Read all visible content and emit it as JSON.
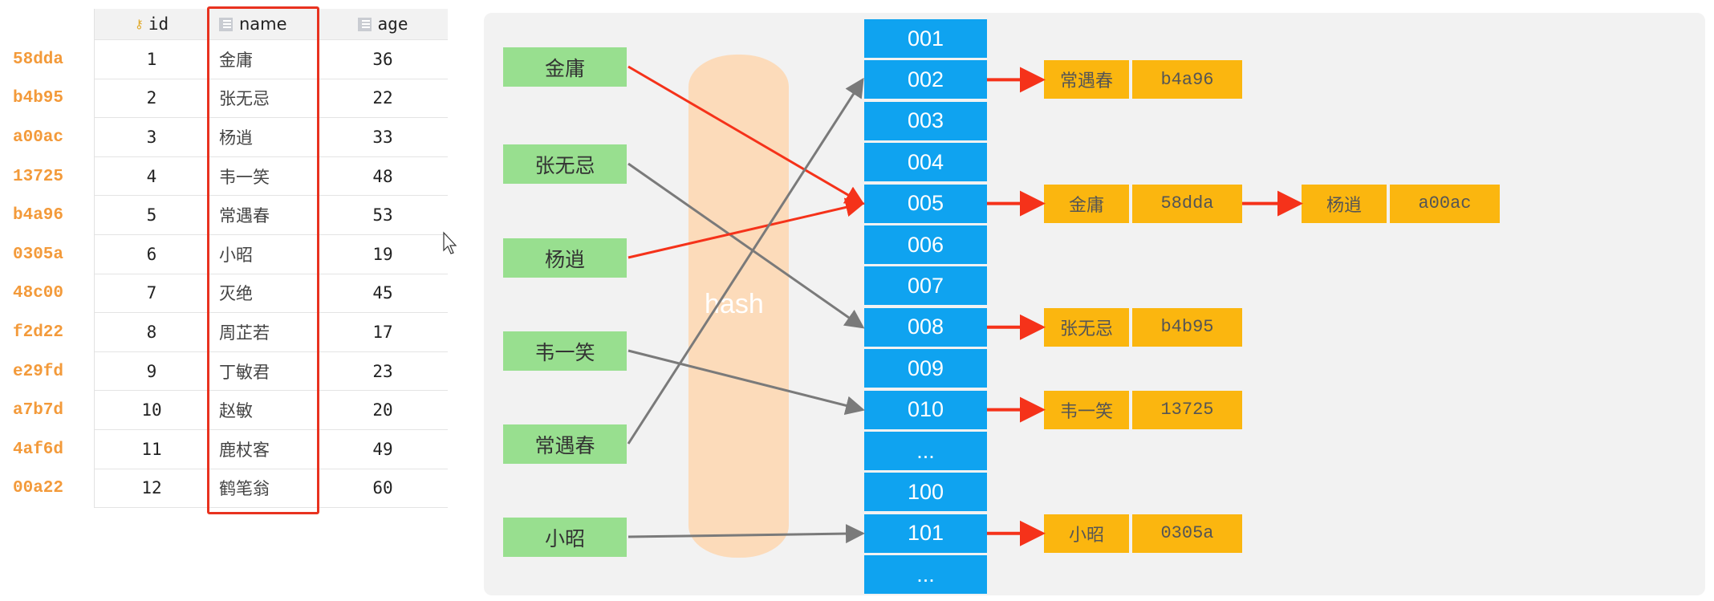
{
  "table": {
    "columns": [
      {
        "label": "id",
        "icon": "primary-key-icon"
      },
      {
        "label": "name",
        "icon": "column-icon"
      },
      {
        "label": "age",
        "icon": "column-icon"
      }
    ],
    "rows": [
      {
        "hash": "58dda",
        "id": "1",
        "name": "金庸",
        "age": "36"
      },
      {
        "hash": "b4b95",
        "id": "2",
        "name": "张无忌",
        "age": "22"
      },
      {
        "hash": "a00ac",
        "id": "3",
        "name": "杨逍",
        "age": "33"
      },
      {
        "hash": "13725",
        "id": "4",
        "name": "韦一笑",
        "age": "48"
      },
      {
        "hash": "b4a96",
        "id": "5",
        "name": "常遇春",
        "age": "53"
      },
      {
        "hash": "0305a",
        "id": "6",
        "name": "小昭",
        "age": "19"
      },
      {
        "hash": "48c00",
        "id": "7",
        "name": "灭绝",
        "age": "45"
      },
      {
        "hash": "f2d22",
        "id": "8",
        "name": "周芷若",
        "age": "17"
      },
      {
        "hash": "e29fd",
        "id": "9",
        "name": "丁敏君",
        "age": "23"
      },
      {
        "hash": "a7b7d",
        "id": "10",
        "name": "赵敏",
        "age": "20"
      },
      {
        "hash": "4af6d",
        "id": "11",
        "name": "鹿杖客",
        "age": "49"
      },
      {
        "hash": "00a22",
        "id": "12",
        "name": "鹤笔翁",
        "age": "60"
      }
    ],
    "highlight_color": "#e8321f"
  },
  "diagram": {
    "hash_label": "hash",
    "keys": [
      "金庸",
      "张无忌",
      "杨逍",
      "韦一笑",
      "常遇春",
      "小昭"
    ],
    "buckets": [
      "001",
      "002",
      "003",
      "004",
      "005",
      "006",
      "007",
      "008",
      "009",
      "010",
      "...",
      "100",
      "101",
      "..."
    ],
    "mappings": [
      {
        "key": 0,
        "bucket": 4,
        "color": "#f5321a"
      },
      {
        "key": 1,
        "bucket": 7,
        "color": "#7a7a7a"
      },
      {
        "key": 2,
        "bucket": 4,
        "color": "#f5321a"
      },
      {
        "key": 3,
        "bucket": 9,
        "color": "#7a7a7a"
      },
      {
        "key": 4,
        "bucket": 1,
        "color": "#7a7a7a"
      },
      {
        "key": 5,
        "bucket": 12,
        "color": "#7a7a7a"
      }
    ],
    "chains": [
      {
        "bucket": 1,
        "entries": [
          {
            "name": "常遇春",
            "hash": "b4a96"
          }
        ]
      },
      {
        "bucket": 4,
        "entries": [
          {
            "name": "金庸",
            "hash": "58dda"
          },
          {
            "name": "杨逍",
            "hash": "a00ac"
          }
        ]
      },
      {
        "bucket": 7,
        "entries": [
          {
            "name": "张无忌",
            "hash": "b4b95"
          }
        ]
      },
      {
        "bucket": 9,
        "entries": [
          {
            "name": "韦一笑",
            "hash": "13725"
          }
        ]
      },
      {
        "bucket": 12,
        "entries": [
          {
            "name": "小昭",
            "hash": "0305a"
          }
        ]
      }
    ],
    "colors": {
      "key": "#98df8f",
      "bucket": "#0fa3f0",
      "entry": "#fbb60f",
      "arrow": "#f5321a"
    }
  }
}
